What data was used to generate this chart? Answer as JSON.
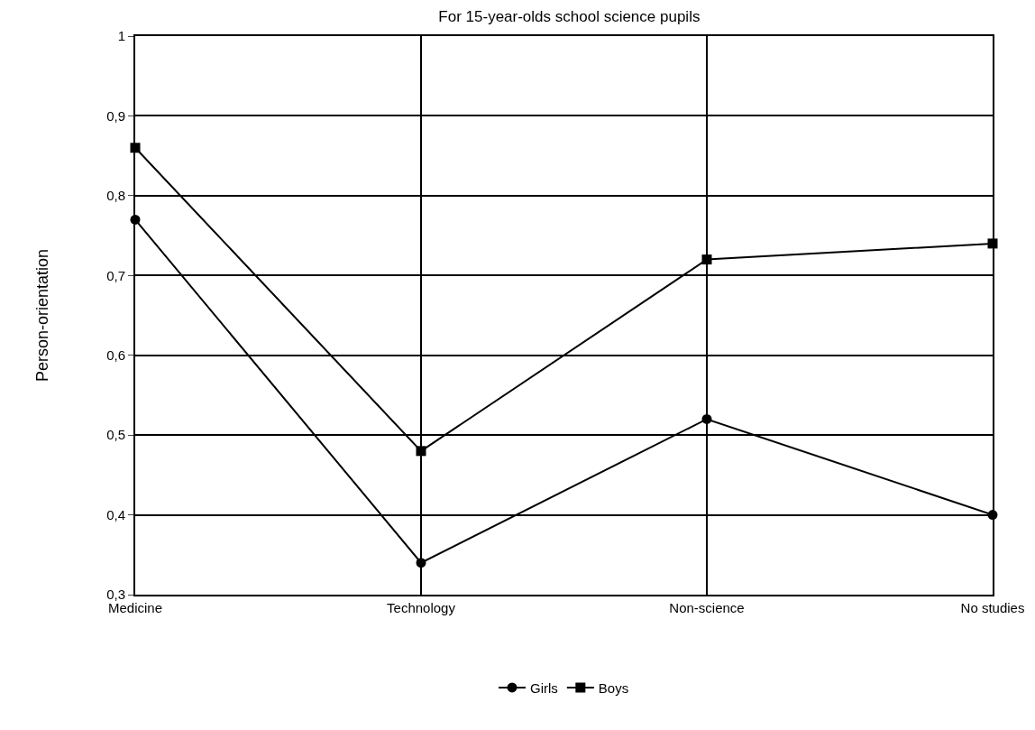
{
  "chart_data": {
    "type": "line",
    "title": "For 15-year-olds school science pupils",
    "ylabel": "Person-orientation",
    "categories": [
      "Medicine",
      "Technology",
      "Non-science",
      "No studies"
    ],
    "series": [
      {
        "name": "Girls",
        "color": "#000000",
        "marker": "circle",
        "values": [
          0.77,
          0.34,
          0.52,
          0.4
        ]
      },
      {
        "name": "Boys",
        "color": "#000000",
        "marker": "square",
        "values": [
          0.86,
          0.48,
          0.72,
          0.74
        ]
      }
    ],
    "ylim": [
      0.3,
      1
    ],
    "yticks": [
      {
        "value": 0.3,
        "label": "0,3"
      },
      {
        "value": 0.4,
        "label": "0,4"
      },
      {
        "value": 0.5,
        "label": "0,5"
      },
      {
        "value": 0.6,
        "label": "0,6"
      },
      {
        "value": 0.7,
        "label": "0,7"
      },
      {
        "value": 0.8,
        "label": "0,8"
      },
      {
        "value": 0.9,
        "label": "0,9"
      },
      {
        "value": 1,
        "label": "1"
      }
    ],
    "grid": true,
    "legend": "bottom",
    "line_style": "solid"
  }
}
